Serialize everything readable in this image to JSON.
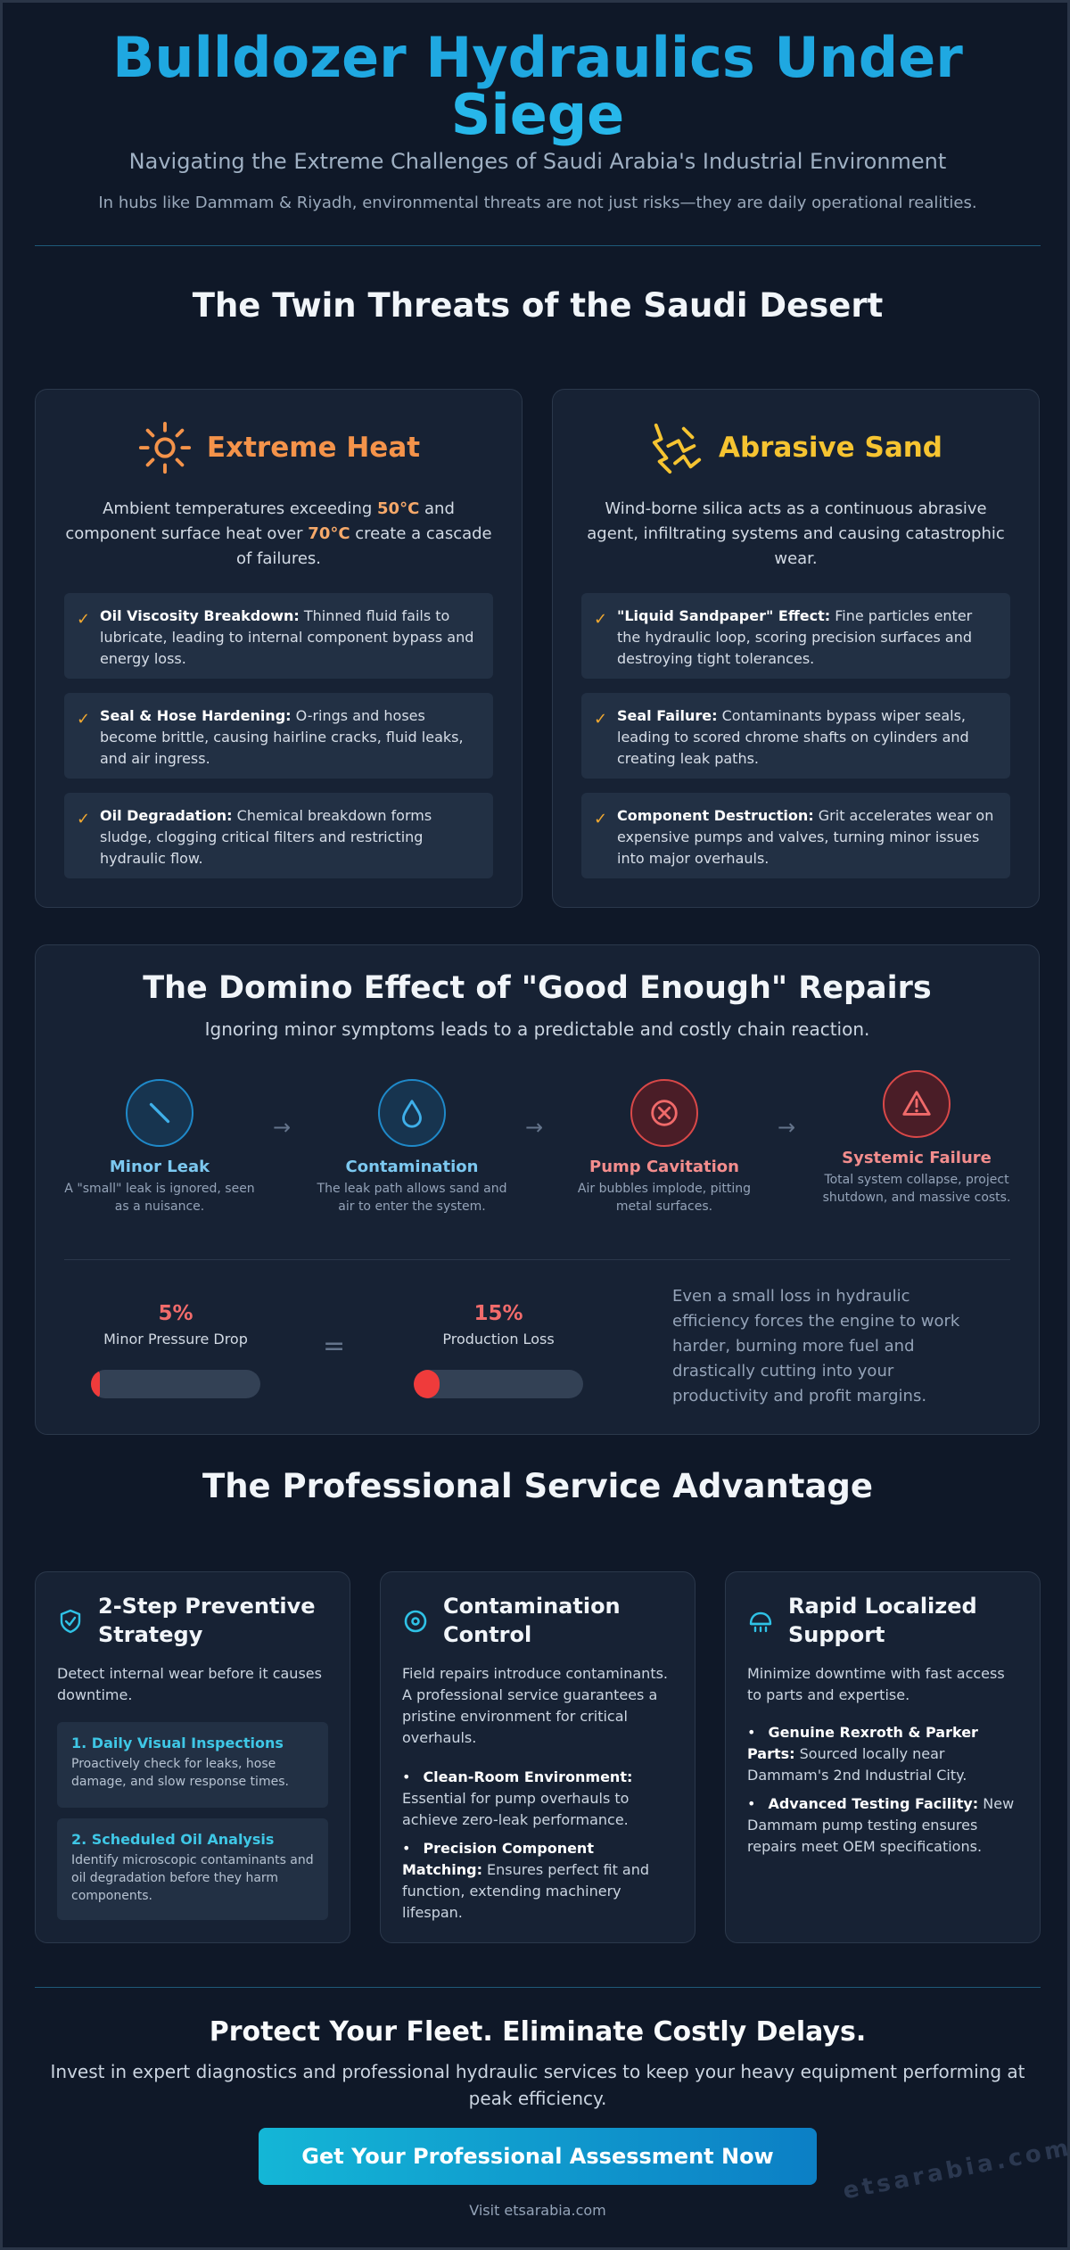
{
  "header": {
    "title_line1": "Bulldozer Hydraulics Under",
    "title_line2": "Siege",
    "subtitle": "Navigating the Extreme Challenges of Saudi Arabia's Industrial Environment",
    "note": "In hubs like Dammam & Riyadh, environmental threats are not just risks—they are daily operational realities."
  },
  "threats": {
    "title": "The Twin Threats of the Saudi Desert",
    "heat": {
      "icon": "sun-icon",
      "title": "Extreme Heat",
      "color": "#f4934a",
      "desc_1": "Ambient temperatures exceeding ",
      "desc_v1": "50°C",
      "desc_2": " and component surface heat over ",
      "desc_v2": "70°C",
      "desc_3": " create a cascade of failures.",
      "items": [
        {
          "title": "Oil Viscosity Breakdown:",
          "text": " Thinned fluid fails to lubricate, leading to internal component bypass and energy loss."
        },
        {
          "title": "Seal & Hose Hardening:",
          "text": " O-rings and hoses become brittle, causing hairline cracks, fluid leaks, and air ingress."
        },
        {
          "title": "Oil Degradation:",
          "text": " Chemical breakdown forms sludge, clogging critical filters and restricting hydraulic flow."
        }
      ]
    },
    "sand": {
      "icon": "sandstorm-icon",
      "title": "Abrasive Sand",
      "color": "#f6c431",
      "desc": "Wind-borne silica acts as a continuous abrasive agent, infiltrating systems and causing catastrophic wear.",
      "items": [
        {
          "title": "\"Liquid Sandpaper\" Effect:",
          "text": " Fine particles enter the hydraulic loop, scoring precision surfaces and destroying tight tolerances."
        },
        {
          "title": "Seal Failure:",
          "text": " Contaminants bypass wiper seals, leading to scored chrome shafts on cylinders and creating leak paths."
        },
        {
          "title": "Component Destruction:",
          "text": " Grit accelerates wear on expensive pumps and valves, turning minor issues into major overhauls."
        }
      ]
    },
    "check_glyph": "✓"
  },
  "domino": {
    "title": "The Domino Effect of \"Good Enough\" Repairs",
    "subtitle": "Ignoring minor symptoms leads to a predictable and costly chain reaction.",
    "arrow": "→",
    "steps": [
      {
        "icon": "slash-icon",
        "title": "Minor Leak",
        "desc": "A \"small\" leak is ignored, seen as a nuisance.",
        "color": "#7cc8f0"
      },
      {
        "icon": "droplet-icon",
        "title": "Contamination",
        "desc": "The leak path allows sand and air to enter the system.",
        "color": "#7cc8f0"
      },
      {
        "icon": "x-circle-icon",
        "title": "Pump Cavitation",
        "desc": "Air bubbles implode, pitting metal surfaces.",
        "color": "#f38d8d"
      },
      {
        "icon": "warning-icon",
        "title": "Systemic Failure",
        "desc": "Total system collapse, project shutdown, and massive costs.",
        "color": "#f38d8d"
      }
    ],
    "equals": "=",
    "pressure": {
      "value": "5%",
      "label": "Minor Pressure Drop",
      "fraction": 0.05
    },
    "production": {
      "value": "15%",
      "label": "Production Loss",
      "fraction": 0.15
    },
    "explain": "Even a small loss in hydraulic efficiency forces the engine to work harder, burning more fuel and drastically cutting into your productivity and profit margins."
  },
  "service": {
    "title": "The Professional Service Advantage",
    "cards": [
      {
        "icon": "shield-check-icon",
        "title": "2-Step Preventive Strategy",
        "desc": "Detect internal wear before it causes downtime.",
        "steps": [
          {
            "title": "1. Daily Visual Inspections",
            "desc": "Proactively check for leaks, hose damage, and slow response times."
          },
          {
            "title": "2. Scheduled Oil Analysis",
            "desc": "Identify microscopic contaminants and oil degradation before they harm components."
          }
        ]
      },
      {
        "icon": "target-icon",
        "title": "Contamination Control",
        "desc": "Field repairs introduce contaminants. A professional service guarantees a pristine environment for critical overhauls.",
        "bullets": [
          {
            "title": "Clean-Room Environment:",
            "text": " Essential for pump overhauls to achieve zero-leak performance."
          },
          {
            "title": "Precision Component Matching:",
            "text": " Ensures perfect fit and function, extending machinery lifespan."
          }
        ]
      },
      {
        "icon": "delivery-icon",
        "title": "Rapid Localized Support",
        "desc": "Minimize downtime with fast access to parts and expertise.",
        "bullets": [
          {
            "title": "Genuine Rexroth & Parker Parts:",
            "text": " Sourced locally near Dammam's 2nd Industrial City."
          },
          {
            "title": "Advanced Testing Facility:",
            "text": " New Dammam pump testing ensures repairs meet OEM specifications."
          }
        ]
      }
    ]
  },
  "cta": {
    "title": "Protect Your Fleet. Eliminate Costly Delays.",
    "subtitle": "Invest in expert diagnostics and professional hydraulic services to keep your heavy equipment performing at peak efficiency.",
    "button": "Get Your Professional Assessment Now",
    "visit": "Visit etsarabia.com",
    "watermark": "etsarabia.com"
  }
}
